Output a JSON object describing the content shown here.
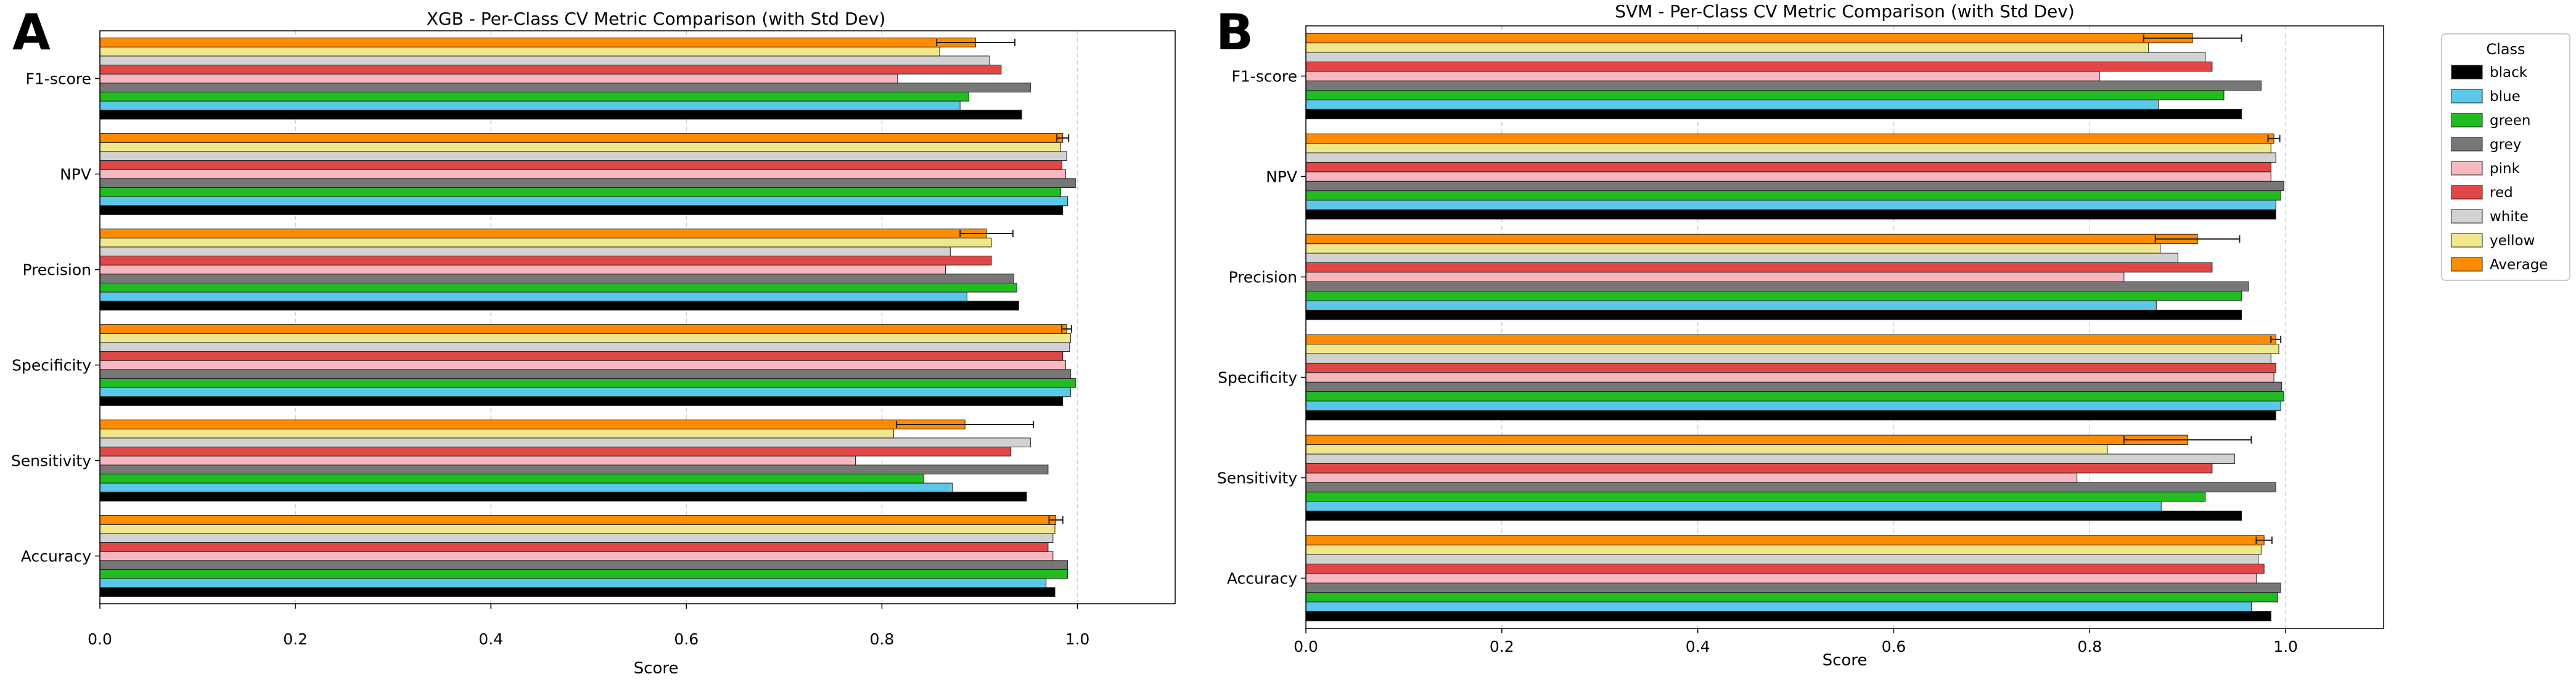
{
  "chart_data": [
    {
      "panel_letter": "A",
      "type": "bar",
      "orientation": "horizontal",
      "title": "XGB - Per-Class CV Metric Comparison (with Std Dev)",
      "xlabel": "Score",
      "ylabel": "",
      "xlim": [
        0.0,
        1.1
      ],
      "xticks": [
        0.0,
        0.2,
        0.4,
        0.6,
        0.8,
        1.0
      ],
      "xtick_labels": [
        "0.0",
        "0.2",
        "0.4",
        "0.6",
        "0.8",
        "1.0"
      ],
      "grid": "vertical dashed",
      "categories": [
        "Accuracy",
        "Sensitivity",
        "Specificity",
        "Precision",
        "NPV",
        "F1-score"
      ],
      "series": [
        {
          "name": "black",
          "color": "#000000",
          "values": [
            0.977,
            0.948,
            0.985,
            0.94,
            0.985,
            0.943
          ]
        },
        {
          "name": "blue",
          "color": "#5bc8e8",
          "values": [
            0.968,
            0.872,
            0.993,
            0.887,
            0.99,
            0.88
          ]
        },
        {
          "name": "green",
          "color": "#22bb22",
          "values": [
            0.99,
            0.843,
            0.998,
            0.938,
            0.983,
            0.889
          ]
        },
        {
          "name": "grey",
          "color": "#777777",
          "values": [
            0.99,
            0.97,
            0.993,
            0.935,
            0.998,
            0.952
          ]
        },
        {
          "name": "pink",
          "color": "#f5b8bf",
          "values": [
            0.975,
            0.773,
            0.988,
            0.865,
            0.988,
            0.816
          ]
        },
        {
          "name": "red",
          "color": "#e04848",
          "values": [
            0.97,
            0.932,
            0.985,
            0.912,
            0.984,
            0.922
          ]
        },
        {
          "name": "white",
          "color": "#d2d2d2",
          "values": [
            0.975,
            0.952,
            0.992,
            0.87,
            0.989,
            0.91
          ]
        },
        {
          "name": "yellow",
          "color": "#f0e68c",
          "values": [
            0.977,
            0.812,
            0.993,
            0.912,
            0.983,
            0.859
          ]
        },
        {
          "name": "Average",
          "color": "#ff8c00",
          "values": [
            0.978,
            0.885,
            0.989,
            0.907,
            0.985,
            0.896
          ],
          "std": [
            0.007,
            0.07,
            0.005,
            0.027,
            0.006,
            0.04
          ]
        }
      ]
    },
    {
      "panel_letter": "B",
      "type": "bar",
      "orientation": "horizontal",
      "title": "SVM - Per-Class CV Metric Comparison (with Std Dev)",
      "xlabel": "Score",
      "ylabel": "",
      "xlim": [
        0.0,
        1.1
      ],
      "xticks": [
        0.0,
        0.2,
        0.4,
        0.6,
        0.8,
        1.0
      ],
      "xtick_labels": [
        "0.0",
        "0.2",
        "0.4",
        "0.6",
        "0.8",
        "1.0"
      ],
      "grid": "vertical dashed",
      "categories": [
        "Accuracy",
        "Sensitivity",
        "Specificity",
        "Precision",
        "NPV",
        "F1-score"
      ],
      "series": [
        {
          "name": "black",
          "color": "#000000",
          "values": [
            0.985,
            0.955,
            0.99,
            0.955,
            0.99,
            0.955
          ]
        },
        {
          "name": "blue",
          "color": "#5bc8e8",
          "values": [
            0.965,
            0.873,
            0.995,
            0.868,
            0.99,
            0.87
          ]
        },
        {
          "name": "green",
          "color": "#22bb22",
          "values": [
            0.992,
            0.918,
            0.998,
            0.955,
            0.995,
            0.937
          ]
        },
        {
          "name": "grey",
          "color": "#777777",
          "values": [
            0.995,
            0.99,
            0.996,
            0.962,
            0.998,
            0.975
          ]
        },
        {
          "name": "pink",
          "color": "#f5b8bf",
          "values": [
            0.97,
            0.787,
            0.988,
            0.835,
            0.985,
            0.81
          ]
        },
        {
          "name": "red",
          "color": "#e04848",
          "values": [
            0.978,
            0.925,
            0.99,
            0.925,
            0.985,
            0.925
          ]
        },
        {
          "name": "white",
          "color": "#d2d2d2",
          "values": [
            0.972,
            0.948,
            0.985,
            0.89,
            0.99,
            0.918
          ]
        },
        {
          "name": "yellow",
          "color": "#f0e68c",
          "values": [
            0.975,
            0.818,
            0.993,
            0.872,
            0.985,
            0.86
          ]
        },
        {
          "name": "Average",
          "color": "#ff8c00",
          "values": [
            0.978,
            0.9,
            0.99,
            0.91,
            0.988,
            0.905
          ],
          "std": [
            0.008,
            0.065,
            0.005,
            0.043,
            0.006,
            0.05
          ]
        }
      ]
    }
  ],
  "legend": {
    "title": "Class",
    "placement": "right",
    "entries": [
      {
        "label": "black",
        "color": "#000000"
      },
      {
        "label": "blue",
        "color": "#5bc8e8"
      },
      {
        "label": "green",
        "color": "#22bb22"
      },
      {
        "label": "grey",
        "color": "#777777"
      },
      {
        "label": "pink",
        "color": "#f5b8bf"
      },
      {
        "label": "red",
        "color": "#e04848"
      },
      {
        "label": "white",
        "color": "#d2d2d2"
      },
      {
        "label": "yellow",
        "color": "#f0e68c"
      },
      {
        "label": "Average",
        "color": "#ff8c00"
      }
    ]
  }
}
